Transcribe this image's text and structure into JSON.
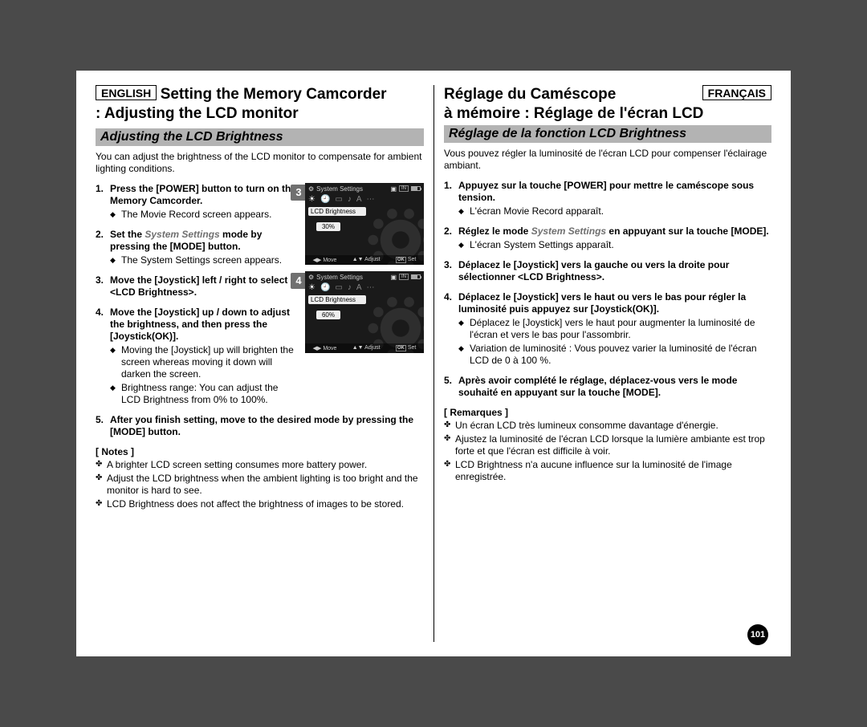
{
  "left": {
    "lang_badge": "ENGLISH",
    "heading_line1": "Setting the Memory Camcorder",
    "heading_line2": ": Adjusting the LCD monitor",
    "subhead": "Adjusting the LCD Brightness",
    "intro": "You can adjust the brightness of the LCD monitor to compensate for ambient lighting conditions.",
    "steps": [
      {
        "num": "1.",
        "title": "Press the [POWER] button to turn on the Memory Camcorder.",
        "bullets": [
          "The Movie Record screen appears."
        ]
      },
      {
        "num": "2.",
        "title_pre": "Set the ",
        "title_em": "System Settings",
        "title_post": " mode by pressing the [MODE] button.",
        "bullets": [
          "The System Settings screen appears."
        ]
      },
      {
        "num": "3.",
        "title": "Move the [Joystick] left / right to select <LCD Brightness>.",
        "bullets": []
      },
      {
        "num": "4.",
        "title": "Move the [Joystick] up / down to adjust the brightness, and then press the [Joystick(OK)].",
        "bullets": [
          "Moving the [Joystick] up will brighten the screen whereas moving it down will darken the screen.",
          "Brightness range: You can adjust the LCD Brightness from 0% to 100%."
        ]
      },
      {
        "num": "5.",
        "title": "After you finish setting, move to the desired mode by pressing the [MODE] button.",
        "bullets": []
      }
    ],
    "notes_label": "[ Notes ]",
    "notes": [
      "A brighter LCD screen setting consumes more battery power.",
      "Adjust the LCD brightness when the ambient lighting is too bright and the monitor is hard to see.",
      "LCD Brightness does not affect the brightness of images to be stored."
    ]
  },
  "right": {
    "lang_badge": "FRANÇAIS",
    "heading_line1": "Réglage du Caméscope",
    "heading_line2": "à mémoire : Réglage de l'écran LCD",
    "subhead": "Réglage de la fonction LCD Brightness",
    "intro": "Vous pouvez régler la luminosité de l'écran LCD pour compenser l'éclairage ambiant.",
    "steps": [
      {
        "num": "1.",
        "title": "Appuyez sur la touche [POWER] pour mettre le caméscope sous tension.",
        "bullets": [
          "L'écran Movie Record apparaît."
        ]
      },
      {
        "num": "2.",
        "title_pre": "Réglez le mode ",
        "title_em": "System Settings",
        "title_post": " en appuyant sur la touche [MODE].",
        "bullets": [
          "L'écran System Settings apparaît."
        ]
      },
      {
        "num": "3.",
        "title": "Déplacez le [Joystick] vers la gauche ou vers la droite pour sélectionner <LCD Brightness>.",
        "bullets": []
      },
      {
        "num": "4.",
        "title": "Déplacez le [Joystick] vers le haut ou vers le bas pour régler la luminosité puis appuyez sur [Joystick(OK)].",
        "bullets": [
          "Déplacez le [Joystick] vers le haut pour augmenter la luminosité de l'écran et vers le bas pour l'assombrir.",
          "Variation de luminosité : Vous pouvez varier la luminosité de l'écran LCD de 0 à 100 %."
        ]
      },
      {
        "num": "5.",
        "title": "Après avoir complété le réglage, déplacez-vous vers le mode souhaité en appuyant sur la touche [MODE].",
        "bullets": []
      }
    ],
    "notes_label": "[ Remarques ]",
    "notes": [
      "Un écran LCD très lumineux consomme davantage d'énergie.",
      "Ajustez la luminosité de l'écran LCD lorsque la lumière ambiante est trop forte et que l'écran est difficile à voir.",
      "LCD Brightness n'a aucune influence sur la luminosité de l'image enregistrée."
    ]
  },
  "cam": {
    "title": "System Settings",
    "field": "LCD Brightness",
    "in_label": "IN",
    "screens": [
      {
        "badge": "3",
        "pct": "30%"
      },
      {
        "badge": "4",
        "pct": "60%"
      }
    ],
    "bottom": {
      "move": "Move",
      "adjust": "Adjust",
      "set": "Set",
      "ok": "OK"
    }
  },
  "page_number": "101"
}
